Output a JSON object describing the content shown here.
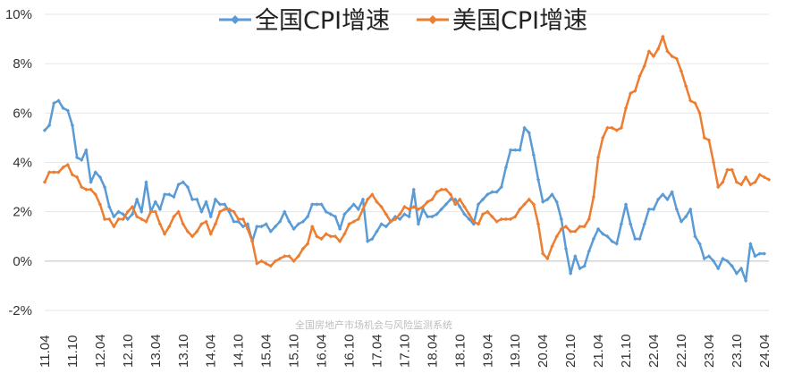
{
  "chart_data": {
    "type": "line",
    "title": "",
    "ylim": [
      -2,
      10
    ],
    "grid": true,
    "legend_placement": "top-center",
    "yticks": [
      "-2%",
      "0%",
      "2%",
      "4%",
      "6%",
      "8%",
      "10%"
    ],
    "xticks": [
      "11.04",
      "11.10",
      "12.04",
      "12.10",
      "13.04",
      "13.10",
      "14.04",
      "14.10",
      "15.04",
      "15.10",
      "16.04",
      "16.10",
      "17.04",
      "17.10",
      "18.04",
      "18.10",
      "19.04",
      "19.10",
      "20.04",
      "20.10",
      "21.04",
      "21.10",
      "22.04",
      "22.10",
      "23.04",
      "23.10",
      "24.04"
    ],
    "x_start": "2011-04",
    "series": [
      {
        "name": "全国CPI增速",
        "color": "#5b9bd5",
        "values": [
          5.3,
          5.5,
          6.4,
          6.5,
          6.2,
          6.1,
          5.5,
          4.2,
          4.1,
          4.5,
          3.2,
          3.6,
          3.4,
          3.0,
          2.2,
          1.8,
          2.0,
          1.9,
          1.7,
          1.9,
          2.5,
          2.0,
          3.2,
          2.0,
          2.4,
          2.1,
          2.7,
          2.7,
          2.6,
          3.1,
          3.2,
          3.0,
          2.5,
          2.5,
          2.0,
          2.4,
          1.8,
          2.5,
          2.3,
          2.3,
          2.0,
          1.6,
          1.6,
          1.4,
          1.5,
          0.8,
          1.4,
          1.4,
          1.5,
          1.2,
          1.4,
          1.6,
          2.0,
          1.6,
          1.3,
          1.5,
          1.6,
          1.8,
          2.3,
          2.3,
          2.3,
          2.0,
          1.9,
          1.8,
          1.3,
          1.9,
          2.1,
          2.3,
          2.1,
          2.5,
          0.8,
          0.9,
          1.2,
          1.5,
          1.4,
          1.6,
          1.8,
          1.7,
          1.9,
          1.8,
          2.9,
          1.5,
          2.1,
          1.8,
          1.8,
          1.9,
          2.1,
          2.3,
          2.5,
          2.5,
          2.2,
          1.9,
          1.7,
          1.5,
          2.3,
          2.5,
          2.7,
          2.8,
          2.8,
          3.0,
          3.8,
          4.5,
          4.5,
          4.5,
          5.4,
          5.2,
          4.3,
          3.3,
          2.4,
          2.5,
          2.7,
          2.4,
          1.7,
          0.5,
          -0.5,
          0.2,
          -0.3,
          -0.2,
          0.4,
          0.9,
          1.3,
          1.1,
          1.0,
          0.8,
          0.7,
          1.5,
          2.3,
          1.5,
          0.9,
          0.9,
          1.5,
          2.1,
          2.1,
          2.5,
          2.7,
          2.5,
          2.8,
          2.1,
          1.6,
          1.8,
          2.1,
          1.0,
          0.7,
          0.1,
          0.2,
          0.0,
          -0.3,
          0.1,
          0.0,
          -0.2,
          -0.5,
          -0.3,
          -0.8,
          0.7,
          0.2,
          0.3,
          0.3
        ]
      },
      {
        "name": "美国CPI增速",
        "color": "#ed7d31",
        "values": [
          3.2,
          3.6,
          3.6,
          3.6,
          3.8,
          3.9,
          3.5,
          3.4,
          3.0,
          2.9,
          2.9,
          2.7,
          2.3,
          1.7,
          1.7,
          1.4,
          1.7,
          1.7,
          2.0,
          2.2,
          1.8,
          1.7,
          1.6,
          2.0,
          2.0,
          1.5,
          1.1,
          1.4,
          1.8,
          2.0,
          1.5,
          1.2,
          1.0,
          1.2,
          1.5,
          1.6,
          1.1,
          1.5,
          2.0,
          2.1,
          2.1,
          2.0,
          1.7,
          1.7,
          1.3,
          0.8,
          -0.1,
          0.0,
          -0.1,
          -0.2,
          0.0,
          0.1,
          0.2,
          0.2,
          0.0,
          0.2,
          0.5,
          0.7,
          1.4,
          1.0,
          0.9,
          1.1,
          1.0,
          1.0,
          0.8,
          1.1,
          1.5,
          1.6,
          1.7,
          2.1,
          2.5,
          2.7,
          2.4,
          2.2,
          1.9,
          1.6,
          1.7,
          1.9,
          2.2,
          2.1,
          2.2,
          2.1,
          2.2,
          2.4,
          2.5,
          2.8,
          2.9,
          2.9,
          2.7,
          2.3,
          2.5,
          2.2,
          1.9,
          1.6,
          1.5,
          1.9,
          2.0,
          1.8,
          1.6,
          1.7,
          1.7,
          1.7,
          1.8,
          2.1,
          2.3,
          2.5,
          2.3,
          1.5,
          0.3,
          0.1,
          0.6,
          1.0,
          1.3,
          1.4,
          1.2,
          1.2,
          1.4,
          1.4,
          1.7,
          2.6,
          4.2,
          5.0,
          5.4,
          5.4,
          5.3,
          5.4,
          6.2,
          6.8,
          6.9,
          7.5,
          7.9,
          8.5,
          8.3,
          8.6,
          9.1,
          8.5,
          8.3,
          8.2,
          7.7,
          7.1,
          6.5,
          6.4,
          6.0,
          5.0,
          4.9,
          4.0,
          3.0,
          3.2,
          3.7,
          3.7,
          3.2,
          3.1,
          3.4,
          3.1,
          3.2,
          3.5,
          3.4,
          3.3
        ]
      }
    ],
    "watermark": "全国房地产市场机会与风险监测系统"
  }
}
